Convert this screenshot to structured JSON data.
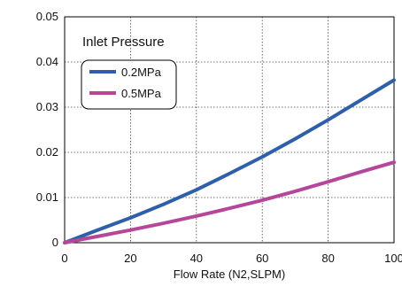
{
  "chart_data": {
    "type": "line",
    "title": "",
    "xlabel": "Flow Rate (N2,SLPM)",
    "ylabel": "",
    "xlim": [
      0,
      100
    ],
    "ylim": [
      0,
      0.05
    ],
    "x_ticks": [
      "0",
      "20",
      "40",
      "60",
      "80",
      "100"
    ],
    "y_ticks": [
      "0",
      "0.01",
      "0.02",
      "0.03",
      "0.04",
      "0.05"
    ],
    "grid": true,
    "legend": {
      "title": "Inlet Pressure",
      "placement": "top-left"
    },
    "series": [
      {
        "name": "0.2MPa",
        "color": "#2e5fa8",
        "x": [
          0,
          5,
          10,
          20,
          30,
          40,
          50,
          60,
          70,
          80,
          90,
          100
        ],
        "y": [
          0,
          0.0014,
          0.0028,
          0.0055,
          0.0085,
          0.0117,
          0.0153,
          0.019,
          0.023,
          0.0272,
          0.0316,
          0.036
        ]
      },
      {
        "name": "0.5MPa",
        "color": "#b5479a",
        "x": [
          0,
          5,
          10,
          20,
          30,
          40,
          50,
          60,
          70,
          80,
          90,
          100
        ],
        "y": [
          0,
          0.0007,
          0.0014,
          0.0028,
          0.0043,
          0.0059,
          0.0076,
          0.0094,
          0.0114,
          0.0135,
          0.0157,
          0.0178
        ]
      }
    ]
  }
}
